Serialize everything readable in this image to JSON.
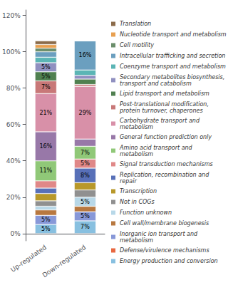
{
  "chart_data": {
    "type": "bar",
    "stacked": true,
    "categories": [
      "Up-regulated",
      "Down-regulated"
    ],
    "series": [
      {
        "name": "Energy production and conversion",
        "color": "#88C0E0",
        "values": [
          5,
          7
        ],
        "value_labels": [
          "5%",
          "7%"
        ]
      },
      {
        "name": "Defense/virulence mechanisms",
        "color": "#E86840",
        "values": [
          null,
          null
        ],
        "value_labels": [
          null,
          null
        ]
      },
      {
        "name": "Inorganic ion transport and metabolism",
        "color": "#8898D8",
        "values": [
          5,
          5
        ],
        "value_labels": [
          "5%",
          "5%"
        ]
      },
      {
        "name": "Cell wall/membrane biogenesis",
        "color": "#B87840",
        "values": [
          3,
          3
        ],
        "value_labels": [
          null,
          null
        ]
      },
      {
        "name": "Function unknown",
        "color": "#B8D8E8",
        "values": [
          2,
          5
        ],
        "value_labels": [
          null,
          "5%"
        ]
      },
      {
        "name": "Not in COGs",
        "color": "#909090",
        "values": [
          3,
          4
        ],
        "value_labels": [
          null,
          null
        ]
      },
      {
        "name": "Transcription",
        "color": "#B8982A",
        "values": [
          4,
          4
        ],
        "value_labels": [
          null,
          null
        ]
      },
      {
        "name": "Replication, recombination and repair",
        "color": "#5870B8",
        "values": [
          3,
          8
        ],
        "value_labels": [
          null,
          "8%"
        ]
      },
      {
        "name": "Signal transduction mechanisms",
        "color": "#E08888",
        "values": [
          4,
          5
        ],
        "value_labels": [
          null,
          "5%"
        ]
      },
      {
        "name": "Amino acid transport and metabolism",
        "color": "#90C878",
        "values": [
          11,
          7
        ],
        "value_labels": [
          "11%",
          "7%"
        ]
      },
      {
        "name": "General function prediction only",
        "color": "#9878A8",
        "values": [
          16,
          4
        ],
        "value_labels": [
          "16%",
          null
        ]
      },
      {
        "name": "Carbohydrate transport and metabolism",
        "color": "#D890A8",
        "values": [
          21,
          29
        ],
        "value_labels": [
          "21%",
          "29%"
        ]
      },
      {
        "name": "Post-translational modification, protein turnover, chaperones",
        "color": "#C87878",
        "values": [
          7,
          1
        ],
        "value_labels": [
          "7%",
          null
        ]
      },
      {
        "name": "Lipid transport and metabolism",
        "color": "#508050",
        "values": [
          5,
          3
        ],
        "value_labels": [
          "5%",
          null
        ]
      },
      {
        "name": "Secondary metabolites biosynthesis, transport and catabolism",
        "color": "#9090C0",
        "values": [
          5,
          2
        ],
        "value_labels": [
          "5%",
          null
        ]
      },
      {
        "name": "Coenzyme transport and metabolism",
        "color": "#5BB5B5",
        "values": [
          3,
          3
        ],
        "value_labels": [
          null,
          null
        ]
      },
      {
        "name": "Intracellular trafficking and secretion",
        "color": "#6B9FBF",
        "values": [
          3,
          16
        ],
        "value_labels": [
          null,
          "16%"
        ]
      },
      {
        "name": "Cell motility",
        "color": "#6B8E6B",
        "values": [
          2,
          0
        ],
        "value_labels": [
          null,
          null
        ]
      },
      {
        "name": "Nucleotide transport and metabolism",
        "color": "#E8A050",
        "values": [
          2,
          0
        ],
        "value_labels": [
          null,
          null
        ]
      },
      {
        "name": "Translation",
        "color": "#8B6B4A",
        "values": [
          2,
          0
        ],
        "value_labels": [
          null,
          null
        ]
      }
    ],
    "ylim": [
      -4,
      123
    ],
    "yticks": [
      {
        "value": 0,
        "label": "0%"
      },
      {
        "value": 20,
        "label": "20%"
      },
      {
        "value": 40,
        "label": "40%"
      },
      {
        "value": 60,
        "label": "60%"
      },
      {
        "value": 80,
        "label": "80%"
      },
      {
        "value": 100,
        "label": "100%"
      },
      {
        "value": 120,
        "label": "120%"
      }
    ],
    "grid": false,
    "legend": "right",
    "data_labels": true
  }
}
